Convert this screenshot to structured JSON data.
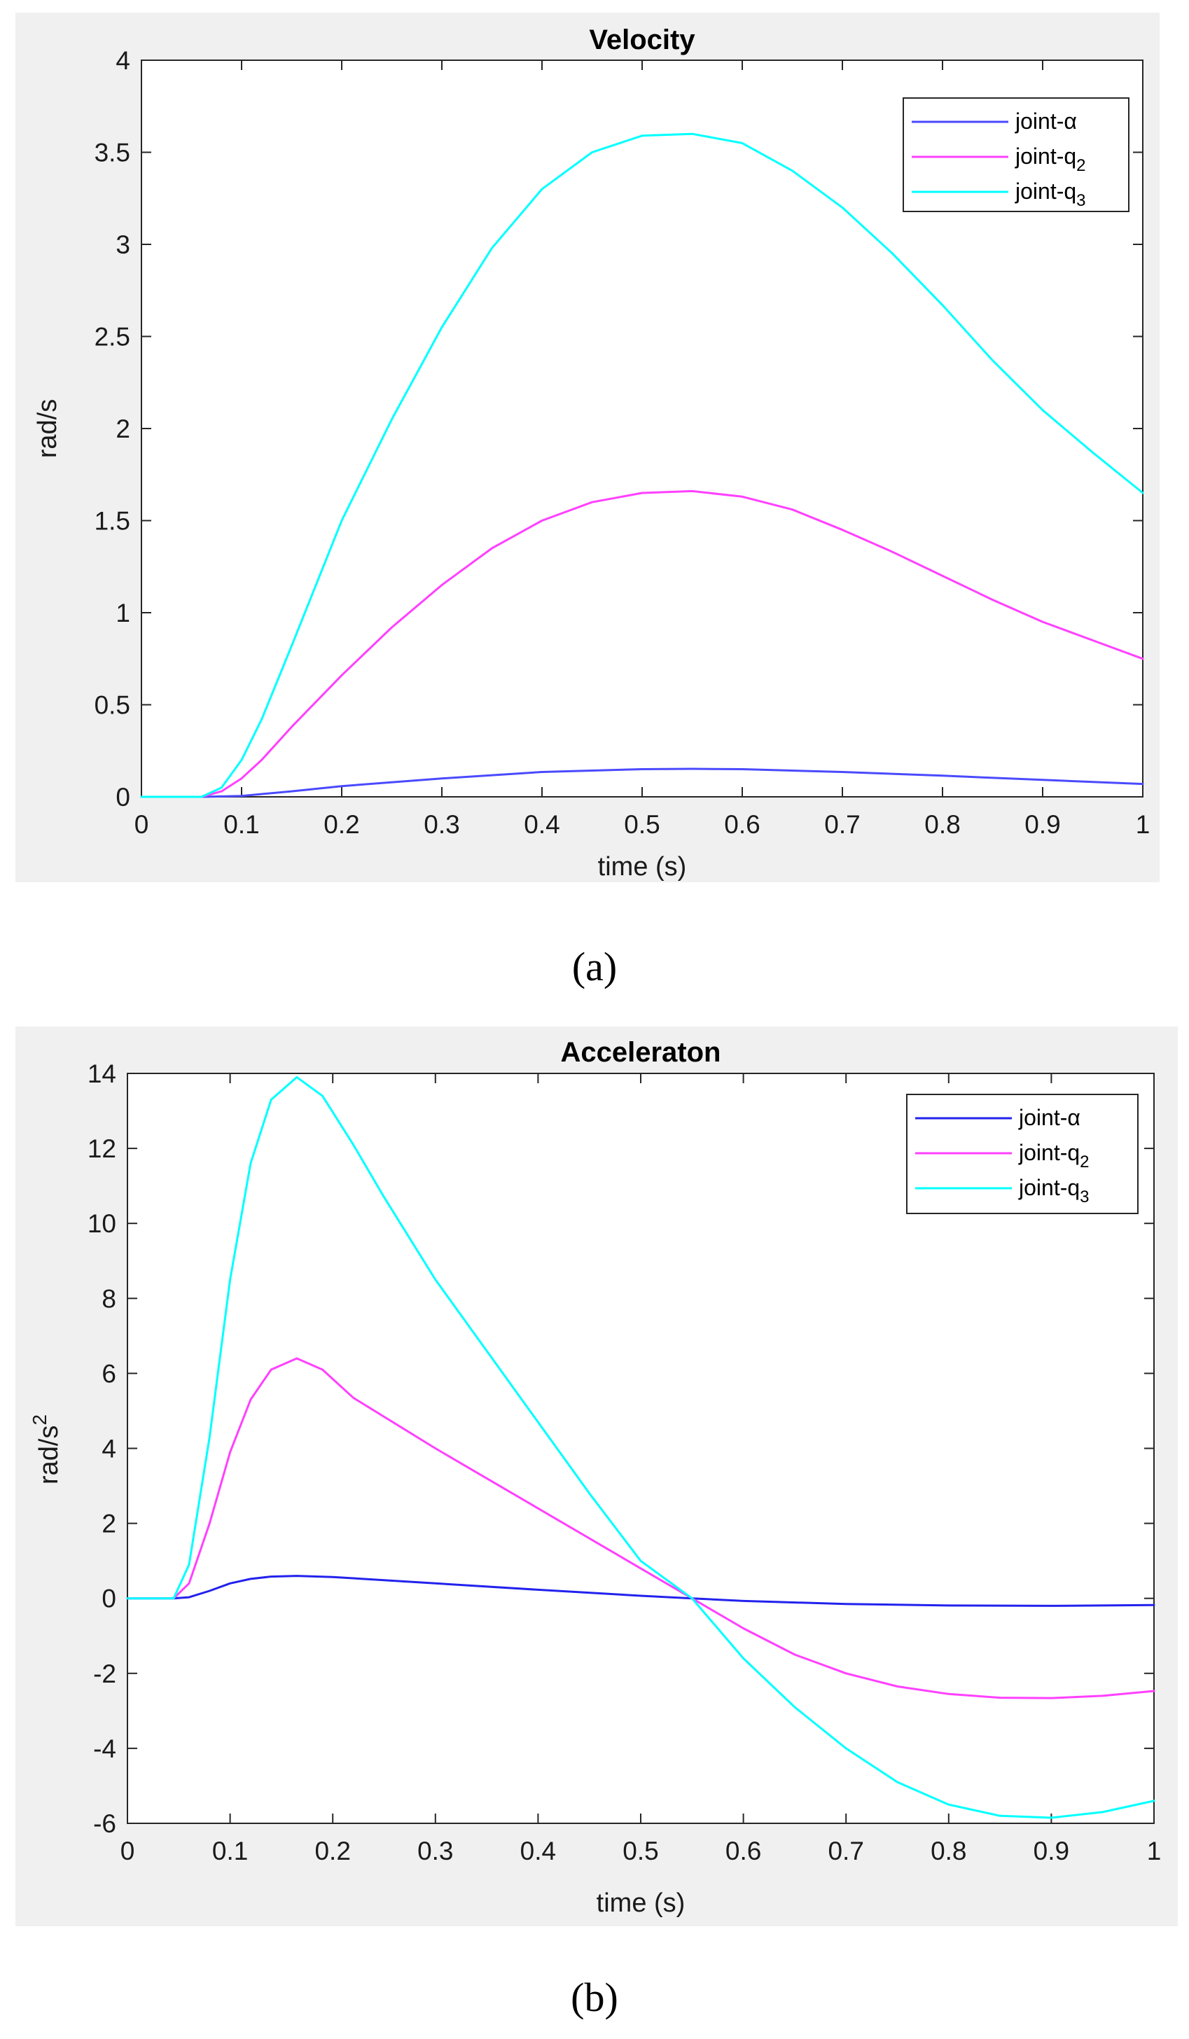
{
  "captions": [
    "(a)",
    "(b)"
  ],
  "chart_data": [
    {
      "type": "line",
      "title": "Velocity",
      "xlabel": "time (s)",
      "ylabel": "rad/s",
      "ylabel_sup": "",
      "xlim": [
        0,
        1
      ],
      "ylim": [
        0,
        4
      ],
      "xticks": [
        0,
        0.1,
        0.2,
        0.3,
        0.4,
        0.5,
        0.6,
        0.7,
        0.8,
        0.9,
        1
      ],
      "xtick_labels": [
        "0",
        "0.1",
        "0.2",
        "0.3",
        "0.4",
        "0.5",
        "0.6",
        "0.7",
        "0.8",
        "0.9",
        "1"
      ],
      "yticks": [
        0,
        0.5,
        1,
        1.5,
        2,
        2.5,
        3,
        3.5,
        4
      ],
      "ytick_labels": [
        "0",
        "0.5",
        "1",
        "1.5",
        "2",
        "2.5",
        "3",
        "3.5",
        "4"
      ],
      "grid": false,
      "legend_position": "top-right",
      "series": [
        {
          "name": "joint-α",
          "base": "joint-α",
          "sub": "",
          "color": "#4a4aff",
          "x": [
            0,
            0.06,
            0.1,
            0.15,
            0.2,
            0.3,
            0.4,
            0.5,
            0.55,
            0.6,
            0.7,
            0.8,
            0.9,
            1
          ],
          "values": [
            0,
            0,
            0.005,
            0.03,
            0.058,
            0.1,
            0.135,
            0.15,
            0.152,
            0.15,
            0.135,
            0.115,
            0.092,
            0.07
          ]
        },
        {
          "name": "joint-q2",
          "base": "joint-q",
          "sub": "2",
          "color": "#ff40ff",
          "x": [
            0,
            0.06,
            0.08,
            0.1,
            0.12,
            0.15,
            0.2,
            0.25,
            0.3,
            0.35,
            0.4,
            0.45,
            0.5,
            0.55,
            0.6,
            0.65,
            0.7,
            0.75,
            0.8,
            0.85,
            0.9,
            0.95,
            1
          ],
          "values": [
            0,
            0,
            0.03,
            0.1,
            0.2,
            0.38,
            0.66,
            0.92,
            1.15,
            1.35,
            1.5,
            1.6,
            1.65,
            1.66,
            1.63,
            1.56,
            1.45,
            1.33,
            1.2,
            1.07,
            0.95,
            0.85,
            0.75
          ]
        },
        {
          "name": "joint-q3",
          "base": "joint-q",
          "sub": "3",
          "color": "#00ffff",
          "x": [
            0,
            0.06,
            0.08,
            0.1,
            0.12,
            0.15,
            0.2,
            0.25,
            0.3,
            0.35,
            0.4,
            0.45,
            0.5,
            0.55,
            0.6,
            0.65,
            0.7,
            0.75,
            0.8,
            0.85,
            0.9,
            0.95,
            1
          ],
          "values": [
            0,
            0,
            0.05,
            0.2,
            0.42,
            0.82,
            1.5,
            2.05,
            2.55,
            2.98,
            3.3,
            3.5,
            3.59,
            3.6,
            3.55,
            3.4,
            3.2,
            2.95,
            2.67,
            2.37,
            2.1,
            1.87,
            1.65
          ]
        }
      ]
    },
    {
      "type": "line",
      "title": "Acceleraton",
      "xlabel": "time (s)",
      "ylabel": "rad/s",
      "ylabel_sup": "2",
      "xlim": [
        0,
        1
      ],
      "ylim": [
        -6,
        14
      ],
      "xticks": [
        0,
        0.1,
        0.2,
        0.3,
        0.4,
        0.5,
        0.6,
        0.7,
        0.8,
        0.9,
        1
      ],
      "xtick_labels": [
        "0",
        "0.1",
        "0.2",
        "0.3",
        "0.4",
        "0.5",
        "0.6",
        "0.7",
        "0.8",
        "0.9",
        "1"
      ],
      "yticks": [
        -6,
        -4,
        -2,
        0,
        2,
        4,
        6,
        8,
        10,
        12,
        14
      ],
      "ytick_labels": [
        "-6",
        "-4",
        "-2",
        "0",
        "2",
        "4",
        "6",
        "8",
        "10",
        "12",
        "14"
      ],
      "grid": false,
      "legend_position": "top-right",
      "series": [
        {
          "name": "joint-α",
          "base": "joint-α",
          "sub": "",
          "color": "#2222ee",
          "x": [
            0,
            0.045,
            0.06,
            0.08,
            0.1,
            0.12,
            0.14,
            0.165,
            0.2,
            0.3,
            0.4,
            0.5,
            0.55,
            0.6,
            0.7,
            0.8,
            0.9,
            1
          ],
          "values": [
            0,
            0,
            0.03,
            0.2,
            0.4,
            0.52,
            0.58,
            0.6,
            0.57,
            0.4,
            0.23,
            0.07,
            0,
            -0.07,
            -0.15,
            -0.19,
            -0.2,
            -0.18
          ]
        },
        {
          "name": "joint-q2",
          "base": "joint-q",
          "sub": "2",
          "color": "#ff40ff",
          "x": [
            0,
            0.045,
            0.06,
            0.08,
            0.1,
            0.12,
            0.14,
            0.165,
            0.19,
            0.22,
            0.3,
            0.4,
            0.5,
            0.55,
            0.6,
            0.65,
            0.7,
            0.75,
            0.8,
            0.85,
            0.9,
            0.95,
            1
          ],
          "values": [
            0,
            0,
            0.4,
            2.0,
            3.9,
            5.3,
            6.1,
            6.4,
            6.1,
            5.35,
            4.0,
            2.4,
            0.8,
            0,
            -0.8,
            -1.5,
            -2.0,
            -2.35,
            -2.55,
            -2.65,
            -2.66,
            -2.6,
            -2.47
          ]
        },
        {
          "name": "joint-q3",
          "base": "joint-q",
          "sub": "3",
          "color": "#00ffff",
          "x": [
            0,
            0.045,
            0.06,
            0.08,
            0.1,
            0.12,
            0.14,
            0.165,
            0.19,
            0.22,
            0.25,
            0.3,
            0.35,
            0.4,
            0.45,
            0.5,
            0.55,
            0.6,
            0.65,
            0.7,
            0.75,
            0.8,
            0.85,
            0.9,
            0.95,
            1
          ],
          "values": [
            0,
            0,
            0.9,
            4.3,
            8.5,
            11.6,
            13.3,
            13.9,
            13.4,
            12.1,
            10.7,
            8.5,
            6.6,
            4.7,
            2.8,
            1.0,
            0,
            -1.6,
            -2.9,
            -4.0,
            -4.9,
            -5.5,
            -5.8,
            -5.85,
            -5.7,
            -5.4
          ]
        }
      ]
    }
  ]
}
